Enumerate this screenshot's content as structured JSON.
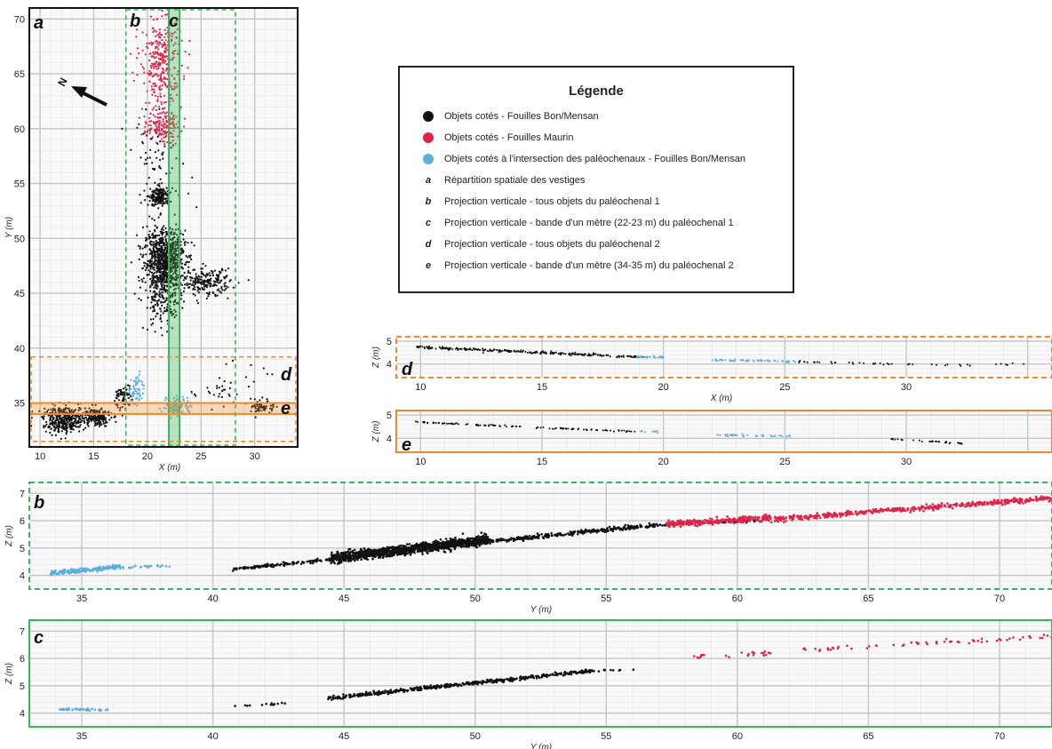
{
  "colors": {
    "bon_mensan": "#111111",
    "maurin": "#e0244a",
    "intersection": "#5aaee0",
    "green": "#3bb55a",
    "green_dashed": "#3bb55a",
    "orange": "#f08a2c",
    "grid_major": "#c4c4c4",
    "grid_minor": "#e6e6e6"
  },
  "legend": {
    "title": "Légende",
    "entries": [
      {
        "marker": "dot",
        "color": "#111111",
        "letter": "",
        "text": "Objets cotés - Fouilles Bon/Mensan"
      },
      {
        "marker": "dot",
        "color": "#e0244a",
        "letter": "",
        "text": "Objets cotés - Fouilles Maurin"
      },
      {
        "marker": "dot",
        "color": "#5aaee0",
        "letter": "",
        "text": "Objets cotés à l'intersection des paléochenaux - Fouilles Bon/Mensan"
      },
      {
        "marker": "letter",
        "color": "",
        "letter": "a",
        "text": "Répartition spatiale des vestiges"
      },
      {
        "marker": "letter",
        "color": "",
        "letter": "b",
        "text": "Projection verticale - tous objets du paléochenal 1"
      },
      {
        "marker": "letter",
        "color": "",
        "letter": "c",
        "text": "Projection verticale - bande d'un mètre (22-23 m) du paléochenal 1"
      },
      {
        "marker": "letter",
        "color": "",
        "letter": "d",
        "text": "Projection verticale - tous objets du paléochenal 2"
      },
      {
        "marker": "letter",
        "color": "",
        "letter": "e",
        "text": "Projection verticale - bande d'un mètre (34-35 m) du paléochenal 2"
      }
    ]
  },
  "chart_data": [
    {
      "id": "a",
      "type": "scatter",
      "panel_label": "a",
      "xlabel": "X (m)",
      "ylabel": "Y (m)",
      "xlim": [
        9,
        34
      ],
      "ylim": [
        31,
        71
      ],
      "xticks": [
        10,
        15,
        20,
        25,
        30
      ],
      "yticks": [
        35,
        40,
        45,
        50,
        55,
        60,
        65,
        70
      ],
      "north_arrow": "N",
      "zones": [
        {
          "label": "b",
          "axis": "x",
          "range": [
            18,
            28.2
          ],
          "style": "dashed",
          "color": "#3bb55a"
        },
        {
          "label": "c",
          "axis": "x",
          "range": [
            22,
            23
          ],
          "style": "solid",
          "color": "#3bb55a"
        },
        {
          "label": "d",
          "axis": "y",
          "range": [
            31.5,
            39.2
          ],
          "style": "dashed",
          "color": "#f08a2c"
        },
        {
          "label": "e",
          "axis": "y",
          "range": [
            34,
            35
          ],
          "style": "solid",
          "color": "#f08a2c"
        }
      ],
      "clusters": [
        {
          "series": "Objets cotés - Fouilles Bon/Mensan",
          "color": "#111111",
          "cx": 21.6,
          "cy": 48.0,
          "rx": 1.9,
          "ry": 2.8,
          "n": 900
        },
        {
          "series": "Objets cotés - Fouilles Bon/Mensan",
          "color": "#111111",
          "cx": 21.2,
          "cy": 53.8,
          "rx": 0.9,
          "ry": 0.9,
          "n": 180
        },
        {
          "series": "Objets cotés - Fouilles Bon/Mensan",
          "color": "#111111",
          "cx": 25.5,
          "cy": 46.0,
          "rx": 2.2,
          "ry": 1.2,
          "n": 200
        },
        {
          "series": "Objets cotés - Fouilles Bon/Mensan",
          "color": "#111111",
          "cx": 21.5,
          "cy": 44.0,
          "rx": 1.8,
          "ry": 2.5,
          "n": 160
        },
        {
          "series": "Objets cotés - Fouilles Bon/Mensan",
          "color": "#111111",
          "cx": 21.0,
          "cy": 57.0,
          "rx": 3.0,
          "ry": 4.0,
          "n": 70
        },
        {
          "series": "Objets cotés - Fouilles Bon/Mensan",
          "color": "#111111",
          "cx": 12.3,
          "cy": 33.5,
          "rx": 2.0,
          "ry": 1.2,
          "n": 380
        },
        {
          "series": "Objets cotés - Fouilles Bon/Mensan",
          "color": "#111111",
          "cx": 15.3,
          "cy": 33.8,
          "rx": 1.3,
          "ry": 0.9,
          "n": 160
        },
        {
          "series": "Objets cotés - Fouilles Bon/Mensan",
          "color": "#111111",
          "cx": 17.8,
          "cy": 35.5,
          "rx": 0.8,
          "ry": 1.2,
          "n": 70
        },
        {
          "series": "Objets cotés - Fouilles Bon/Mensan",
          "color": "#111111",
          "cx": 30.8,
          "cy": 34.6,
          "rx": 1.0,
          "ry": 0.5,
          "n": 60
        },
        {
          "series": "Objets cotés - Fouilles Bon/Mensan",
          "color": "#111111",
          "cx": 27.5,
          "cy": 36.5,
          "rx": 3.5,
          "ry": 2.0,
          "n": 40
        },
        {
          "series": "Objets cotés - Fouilles Maurin",
          "color": "#e0244a",
          "cx": 21.3,
          "cy": 66.0,
          "rx": 1.9,
          "ry": 4.5,
          "n": 340
        },
        {
          "series": "Objets cotés - Fouilles Maurin",
          "color": "#e0244a",
          "cx": 21.3,
          "cy": 60.2,
          "rx": 1.7,
          "ry": 1.4,
          "n": 150
        },
        {
          "series": "Objets cotés à l'intersection des paléochenaux - Fouilles Bon/Mensan",
          "color": "#5aaee0",
          "cx": 19.0,
          "cy": 36.2,
          "rx": 0.6,
          "ry": 1.6,
          "n": 60
        },
        {
          "series": "Objets cotés à l'intersection des paléochenaux - Fouilles Bon/Mensan",
          "color": "#5aaee0",
          "cx": 22.8,
          "cy": 34.8,
          "rx": 1.4,
          "ry": 0.9,
          "n": 80
        }
      ]
    },
    {
      "id": "d",
      "type": "scatter",
      "panel_label": "d",
      "xlabel": "X (m)",
      "ylabel": "Z (m)",
      "xlim": [
        9,
        36
      ],
      "ylim": [
        3.4,
        5.2
      ],
      "xticks": [
        10,
        15,
        20,
        25,
        30
      ],
      "yticks": [
        4,
        5
      ],
      "border": "dashed",
      "bands": [
        {
          "series": "Objets cotés - Fouilles Bon/Mensan",
          "color": "#111111",
          "x": [
            9.8,
            19.2
          ],
          "z": [
            4.75,
            4.3
          ],
          "spread": 0.05,
          "n": 260
        },
        {
          "series": "Objets cotés à l'intersection des paléochenaux - Fouilles Bon/Mensan",
          "color": "#5aaee0",
          "x": [
            18.8,
            20.0
          ],
          "z": [
            4.32,
            4.3
          ],
          "spread": 0.04,
          "n": 30
        },
        {
          "series": "Objets cotés à l'intersection des paléochenaux - Fouilles Bon/Mensan",
          "color": "#5aaee0",
          "x": [
            22.0,
            25.5
          ],
          "z": [
            4.18,
            4.12
          ],
          "spread": 0.04,
          "n": 60
        },
        {
          "series": "Objets cotés - Fouilles Bon/Mensan",
          "color": "#111111",
          "x": [
            25.5,
            32.8
          ],
          "z": [
            4.1,
            3.92
          ],
          "spread": 0.04,
          "n": 40
        },
        {
          "series": "Objets cotés - Fouilles Bon/Mensan",
          "color": "#111111",
          "x": [
            33.5,
            35.5
          ],
          "z": [
            4.0,
            3.95
          ],
          "spread": 0.08,
          "n": 6
        }
      ]
    },
    {
      "id": "e",
      "type": "scatter",
      "panel_label": "e",
      "xlabel": "",
      "ylabel": "Z (m)",
      "xlim": [
        9,
        36
      ],
      "ylim": [
        3.4,
        5.2
      ],
      "xticks": [
        10,
        15,
        20,
        25,
        30
      ],
      "yticks": [
        4,
        5
      ],
      "border": "solid",
      "bands": [
        {
          "series": "Objets cotés - Fouilles Bon/Mensan",
          "color": "#111111",
          "x": [
            9.8,
            19.0
          ],
          "z": [
            4.7,
            4.28
          ],
          "spread": 0.03,
          "n": 110
        },
        {
          "series": "Objets cotés à l'intersection des paléochenaux - Fouilles Bon/Mensan",
          "color": "#5aaee0",
          "x": [
            19.0,
            19.8
          ],
          "z": [
            4.3,
            4.28
          ],
          "spread": 0.03,
          "n": 12
        },
        {
          "series": "Objets cotés à l'intersection des paléochenaux - Fouilles Bon/Mensan",
          "color": "#5aaee0",
          "x": [
            22.2,
            25.3
          ],
          "z": [
            4.15,
            4.08
          ],
          "spread": 0.04,
          "n": 45
        },
        {
          "series": "Objets cotés - Fouilles Bon/Mensan",
          "color": "#111111",
          "x": [
            29.3,
            32.3
          ],
          "z": [
            3.98,
            3.78
          ],
          "spread": 0.03,
          "n": 30
        }
      ]
    },
    {
      "id": "b",
      "type": "scatter",
      "panel_label": "b",
      "xlabel": "Y (m)",
      "ylabel": "Z (m)",
      "xlim": [
        33,
        72
      ],
      "ylim": [
        3.5,
        7.4
      ],
      "xticks": [
        35,
        40,
        45,
        50,
        55,
        60,
        65,
        70
      ],
      "yticks": [
        4,
        5,
        6,
        7
      ],
      "border": "dashed",
      "bands": [
        {
          "series": "Objets cotés à l'intersection des paléochenaux - Fouilles Bon/Mensan",
          "color": "#5aaee0",
          "x": [
            33.8,
            36.5
          ],
          "z": [
            4.08,
            4.32
          ],
          "spread": 0.07,
          "n": 170
        },
        {
          "series": "Objets cotés à l'intersection des paléochenaux - Fouilles Bon/Mensan",
          "color": "#5aaee0",
          "x": [
            36.5,
            38.5
          ],
          "z": [
            4.3,
            4.35
          ],
          "spread": 0.04,
          "n": 22
        },
        {
          "series": "Objets cotés - Fouilles Bon/Mensan",
          "color": "#111111",
          "x": [
            40.7,
            44.5
          ],
          "z": [
            4.22,
            4.58
          ],
          "spread": 0.05,
          "n": 120
        },
        {
          "series": "Objets cotés - Fouilles Bon/Mensan",
          "color": "#111111",
          "x": [
            44.5,
            50.5
          ],
          "z": [
            4.62,
            5.3
          ],
          "spread": 0.16,
          "n": 1200
        },
        {
          "series": "Objets cotés - Fouilles Bon/Mensan",
          "color": "#111111",
          "x": [
            50.5,
            57.0
          ],
          "z": [
            5.25,
            5.85
          ],
          "spread": 0.07,
          "n": 280
        },
        {
          "series": "Objets cotés - Fouilles Bon/Mensan",
          "color": "#111111",
          "x": [
            57.0,
            61.0
          ],
          "z": [
            5.85,
            6.02
          ],
          "spread": 0.05,
          "n": 50
        },
        {
          "series": "Objets cotés - Fouilles Maurin",
          "color": "#e0244a",
          "x": [
            57.3,
            61.3
          ],
          "z": [
            5.88,
            6.1
          ],
          "spread": 0.09,
          "n": 300
        },
        {
          "series": "Objets cotés - Fouilles Maurin",
          "color": "#e0244a",
          "x": [
            61.3,
            72.0
          ],
          "z": [
            6.05,
            6.82
          ],
          "spread": 0.08,
          "n": 520
        }
      ]
    },
    {
      "id": "c",
      "type": "scatter",
      "panel_label": "c",
      "xlabel": "Y (m)",
      "ylabel": "Z (m)",
      "xlim": [
        33,
        72
      ],
      "ylim": [
        3.5,
        7.4
      ],
      "xticks": [
        35,
        40,
        45,
        50,
        55,
        60,
        65,
        70
      ],
      "yticks": [
        4,
        5,
        6,
        7
      ],
      "border": "solid",
      "bands": [
        {
          "series": "Objets cotés à l'intersection des paléochenaux - Fouilles Bon/Mensan",
          "color": "#5aaee0",
          "x": [
            34.1,
            36.0
          ],
          "z": [
            4.14,
            4.12
          ],
          "spread": 0.03,
          "n": 45
        },
        {
          "series": "Objets cotés - Fouilles Bon/Mensan",
          "color": "#111111",
          "x": [
            40.2,
            42.8
          ],
          "z": [
            4.22,
            4.35
          ],
          "spread": 0.03,
          "n": 14
        },
        {
          "series": "Objets cotés - Fouilles Bon/Mensan",
          "color": "#111111",
          "x": [
            44.4,
            54.5
          ],
          "z": [
            4.55,
            5.55
          ],
          "spread": 0.06,
          "n": 480
        },
        {
          "series": "Objets cotés - Fouilles Bon/Mensan",
          "color": "#111111",
          "x": [
            54.5,
            56.2
          ],
          "z": [
            5.55,
            5.62
          ],
          "spread": 0.03,
          "n": 10
        },
        {
          "series": "Objets cotés - Fouilles Maurin",
          "color": "#e0244a",
          "x": [
            58.2,
            61.3
          ],
          "z": [
            6.05,
            6.2
          ],
          "spread": 0.08,
          "n": 24
        },
        {
          "series": "Objets cotés - Fouilles Maurin",
          "color": "#e0244a",
          "x": [
            62.3,
            72.0
          ],
          "z": [
            6.3,
            6.8
          ],
          "spread": 0.07,
          "n": 60
        }
      ]
    }
  ]
}
